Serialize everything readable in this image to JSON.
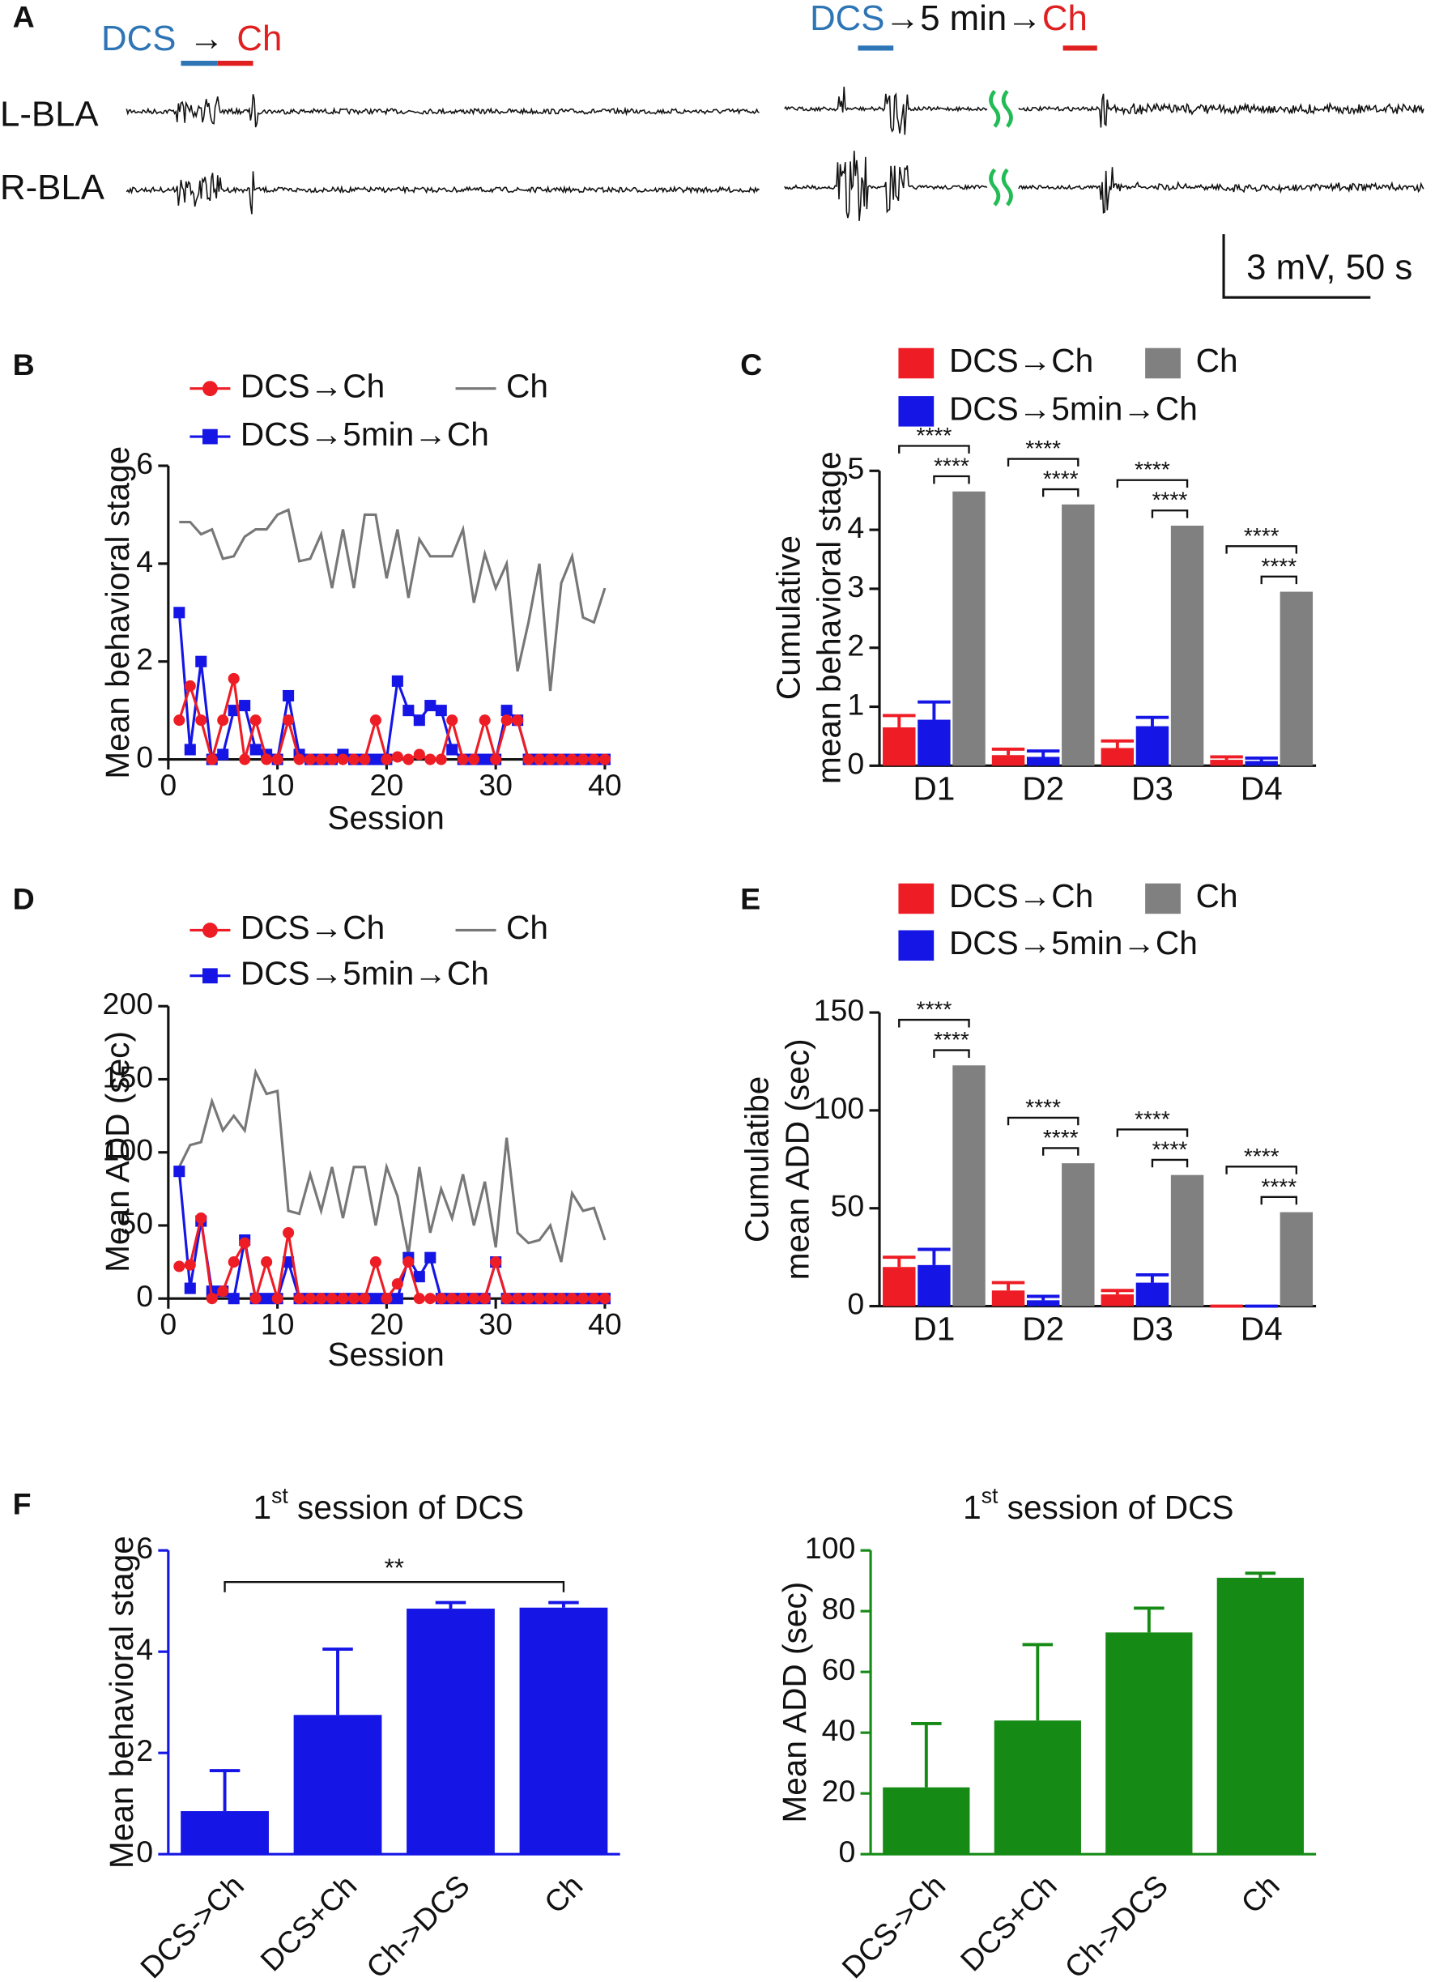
{
  "panel_a": {
    "label": "A",
    "left_protocol": [
      "DCS",
      "→",
      "Ch"
    ],
    "channels": [
      "L-BLA",
      "R-BLA"
    ],
    "right_protocol": [
      "DCS",
      "→5 min→",
      "Ch"
    ],
    "scale_bar": "3 mV, 50 s"
  },
  "chart_data": [
    {
      "panel": "B",
      "type": "line",
      "x": [
        1,
        2,
        3,
        4,
        5,
        6,
        7,
        8,
        9,
        10,
        11,
        12,
        13,
        14,
        15,
        16,
        17,
        18,
        19,
        20,
        21,
        22,
        23,
        24,
        25,
        26,
        27,
        28,
        29,
        30,
        31,
        32,
        33,
        34,
        35,
        36,
        37,
        38,
        39,
        40
      ],
      "series": [
        {
          "name": "DCS→Ch",
          "color": "#ee1c25",
          "marker": "circle",
          "values": [
            0.8,
            1.5,
            0.8,
            0,
            0.8,
            1.65,
            0,
            0.8,
            0,
            0,
            0.8,
            0,
            0,
            0,
            0,
            0,
            0,
            0,
            0.8,
            0,
            0.05,
            0,
            0.1,
            0,
            0,
            0.8,
            0,
            0,
            0.8,
            0,
            0.8,
            0.8,
            0,
            0,
            0,
            0,
            0,
            0,
            0,
            0
          ]
        },
        {
          "name": "DCS→5min→Ch",
          "color": "#1515e6",
          "marker": "square",
          "values": [
            3.0,
            0.2,
            2.0,
            0,
            0.1,
            1.0,
            1.1,
            0.2,
            0.1,
            0,
            1.3,
            0.1,
            0,
            0,
            0,
            0.1,
            0,
            0,
            0,
            0,
            1.6,
            1.0,
            0.8,
            1.1,
            1.0,
            0.2,
            0,
            0,
            0,
            0,
            1.0,
            0.8,
            0,
            0,
            0,
            0,
            0,
            0,
            0,
            0
          ]
        },
        {
          "name": "Ch",
          "color": "#777777",
          "values": [
            4.85,
            4.85,
            4.6,
            4.7,
            4.1,
            4.15,
            4.55,
            4.7,
            4.7,
            5.0,
            5.1,
            4.05,
            4.1,
            4.6,
            3.5,
            4.7,
            3.5,
            5.0,
            5.0,
            3.7,
            4.7,
            3.3,
            4.5,
            4.15,
            4.15,
            4.15,
            4.7,
            3.2,
            4.2,
            3.5,
            4.0,
            1.8,
            2.8,
            4.0,
            1.4,
            3.6,
            4.15,
            2.9,
            2.8,
            3.5
          ]
        }
      ],
      "xlim": [
        0,
        40
      ],
      "xticks": [
        0,
        10,
        20,
        30,
        40
      ],
      "ylim": [
        0,
        6
      ],
      "yticks": [
        0,
        2,
        4,
        6
      ],
      "xlabel": "Session",
      "ylabel": "Mean behavioral stage"
    },
    {
      "panel": "C",
      "type": "bar",
      "categories": [
        "D1",
        "D2",
        "D3",
        "D4"
      ],
      "series": [
        {
          "name": "DCS→Ch",
          "color": "#ee1c25",
          "values": [
            0.65,
            0.18,
            0.3,
            0.1
          ],
          "errors": [
            0.2,
            0.1,
            0.12,
            0.05
          ]
        },
        {
          "name": "DCS→5min→Ch",
          "color": "#1515e6",
          "values": [
            0.78,
            0.15,
            0.67,
            0.08
          ],
          "errors": [
            0.3,
            0.1,
            0.15,
            0.05
          ]
        },
        {
          "name": "Ch",
          "color": "#808080",
          "values": [
            4.65,
            4.43,
            4.07,
            2.95
          ]
        }
      ],
      "significance": [
        [
          "****",
          "****"
        ],
        [
          "****",
          "****"
        ],
        [
          "****",
          "****"
        ],
        [
          "****",
          "****"
        ]
      ],
      "ylim": [
        0,
        5
      ],
      "yticks": [
        0,
        1,
        2,
        3,
        4,
        5
      ],
      "ylabel": [
        "Cumulative",
        "mean behavioral stage"
      ]
    },
    {
      "panel": "D",
      "type": "line",
      "x": [
        1,
        2,
        3,
        4,
        5,
        6,
        7,
        8,
        9,
        10,
        11,
        12,
        13,
        14,
        15,
        16,
        17,
        18,
        19,
        20,
        21,
        22,
        23,
        24,
        25,
        26,
        27,
        28,
        29,
        30,
        31,
        32,
        33,
        34,
        35,
        36,
        37,
        38,
        39,
        40
      ],
      "series": [
        {
          "name": "DCS→Ch",
          "color": "#ee1c25",
          "marker": "circle",
          "values": [
            22,
            23,
            55,
            0,
            5,
            25,
            38,
            0,
            25,
            0,
            45,
            0,
            0,
            0,
            0,
            0,
            0,
            0,
            25,
            0,
            10,
            25,
            0,
            0,
            0,
            0,
            0,
            0,
            0,
            25,
            0,
            0,
            0,
            0,
            0,
            0,
            0,
            0,
            0,
            0
          ]
        },
        {
          "name": "DCS→5min→Ch",
          "color": "#1515e6",
          "marker": "square",
          "values": [
            87,
            7,
            53,
            5,
            5,
            0,
            40,
            0,
            0,
            0,
            25,
            0,
            0,
            0,
            0,
            0,
            0,
            0,
            0,
            0,
            0,
            28,
            15,
            28,
            0,
            0,
            0,
            0,
            0,
            25,
            0,
            0,
            0,
            0,
            0,
            0,
            0,
            0,
            0,
            0
          ]
        },
        {
          "name": "Ch",
          "color": "#777777",
          "values": [
            90,
            105,
            107,
            135,
            115,
            125,
            115,
            155,
            140,
            142,
            60,
            58,
            85,
            60,
            90,
            55,
            90,
            90,
            50,
            90,
            70,
            30,
            90,
            45,
            75,
            55,
            85,
            50,
            80,
            35,
            110,
            45,
            38,
            40,
            50,
            25,
            72,
            60,
            62,
            40
          ]
        }
      ],
      "xlim": [
        0,
        40
      ],
      "xticks": [
        0,
        10,
        20,
        30,
        40
      ],
      "ylim": [
        0,
        200
      ],
      "yticks": [
        0,
        50,
        100,
        150,
        200
      ],
      "xlabel": "Session",
      "ylabel": "Mean ADD (sec)"
    },
    {
      "panel": "E",
      "type": "bar",
      "categories": [
        "D1",
        "D2",
        "D3",
        "D4"
      ],
      "series": [
        {
          "name": "DCS→Ch",
          "color": "#ee1c25",
          "values": [
            20,
            8,
            6,
            0
          ],
          "errors": [
            5,
            4,
            2,
            0
          ]
        },
        {
          "name": "DCS→5min→Ch",
          "color": "#1515e6",
          "values": [
            21,
            3,
            12,
            0
          ],
          "errors": [
            8,
            2,
            4,
            0
          ]
        },
        {
          "name": "Ch",
          "color": "#808080",
          "values": [
            123,
            73,
            67,
            48
          ]
        }
      ],
      "significance": [
        [
          "****",
          "****"
        ],
        [
          "****",
          "****"
        ],
        [
          "****",
          "****"
        ],
        [
          "****",
          "****"
        ]
      ],
      "ylim": [
        0,
        150
      ],
      "yticks": [
        0,
        50,
        100,
        150
      ],
      "ylabel": [
        "Cumulatibe",
        "mean ADD (sec)"
      ]
    },
    {
      "panel": "F",
      "type": "bar",
      "title_parts": [
        "1",
        "st",
        " session of DCS"
      ],
      "categories": [
        "DCS->Ch",
        "DCS+Ch",
        "Ch->DCS",
        "Ch"
      ],
      "values": [
        0.85,
        2.75,
        4.85,
        4.87
      ],
      "errors": [
        0.8,
        1.3,
        0.12,
        0.1
      ],
      "color": "#1515e6",
      "bracket": "**",
      "ylim": [
        0,
        6
      ],
      "yticks": [
        0,
        2,
        4,
        6
      ],
      "ylabel": "Mean behavioral stage",
      "axis_color": "#1515e6"
    },
    {
      "type": "bar",
      "title_parts": [
        "1",
        "st",
        " session of DCS"
      ],
      "categories": [
        "DCS->Ch",
        "DCS+Ch",
        "Ch->DCS",
        "Ch"
      ],
      "values": [
        22,
        44,
        73,
        91
      ],
      "errors": [
        21,
        25,
        8,
        1.5
      ],
      "color": "#158a15",
      "ylim": [
        0,
        100
      ],
      "yticks": [
        0,
        20,
        40,
        60,
        80,
        100
      ],
      "ylabel": "Mean ADD (sec)",
      "axis_color": "#158a15"
    }
  ]
}
